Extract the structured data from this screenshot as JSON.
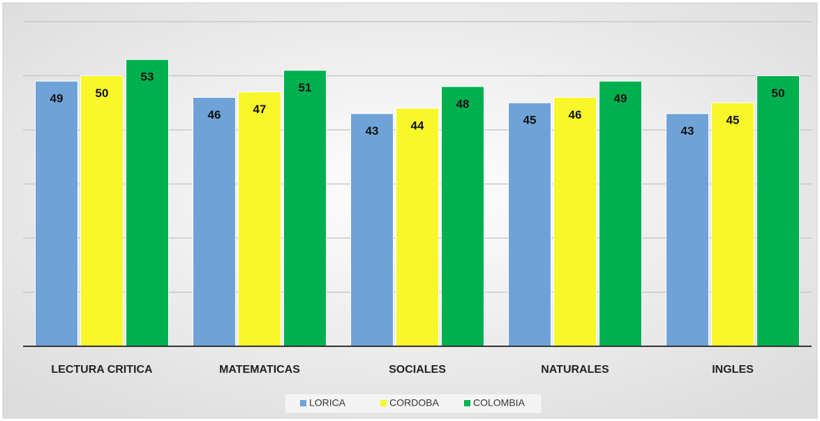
{
  "chart_data": {
    "type": "bar",
    "categories": [
      "LECTURA CRITICA",
      "MATEMATICAS",
      "SOCIALES",
      "NATURALES",
      "INGLES"
    ],
    "series": [
      {
        "name": "LORICA",
        "color": "#6fa3d8",
        "values": [
          49,
          46,
          43,
          45,
          43
        ]
      },
      {
        "name": "CORDOBA",
        "color": "#f7f72a",
        "values": [
          50,
          47,
          44,
          46,
          45
        ]
      },
      {
        "name": "COLOMBIA",
        "color": "#00b04f",
        "values": [
          53,
          51,
          48,
          49,
          50
        ]
      }
    ],
    "ylim": [
      0,
      60
    ],
    "yticks": [
      0,
      10,
      20,
      30,
      40,
      50,
      60
    ],
    "grid": true,
    "legend": "bottom"
  }
}
